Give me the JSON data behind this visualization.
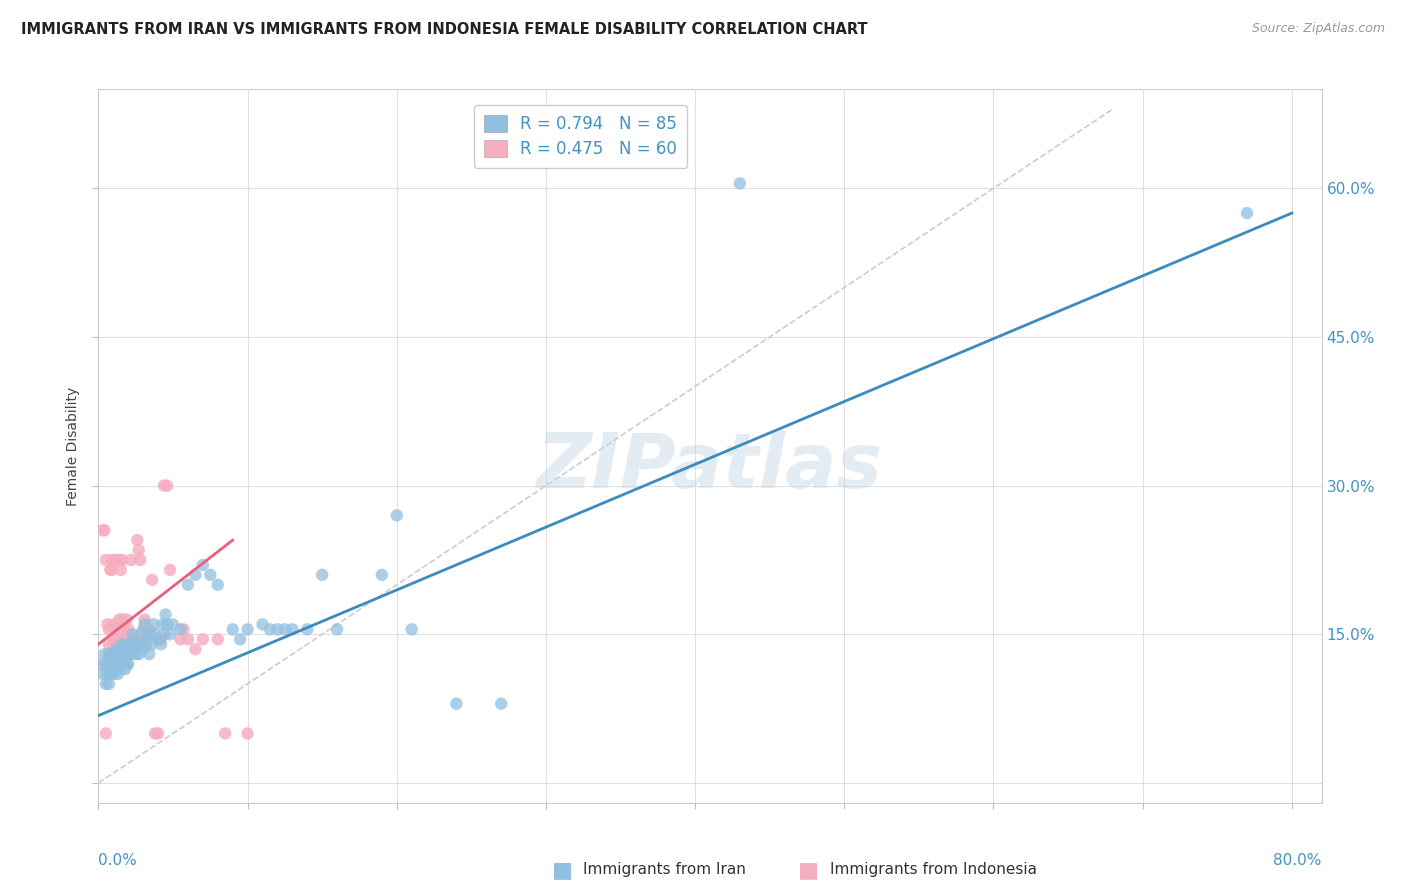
{
  "title": "IMMIGRANTS FROM IRAN VS IMMIGRANTS FROM INDONESIA FEMALE DISABILITY CORRELATION CHART",
  "source": "Source: ZipAtlas.com",
  "ylabel": "Female Disability",
  "legend_iran_R": "0.794",
  "legend_iran_N": "85",
  "legend_indo_R": "0.475",
  "legend_indo_N": "60",
  "iran_scatter": [
    [
      0.002,
      0.12
    ],
    [
      0.003,
      0.11
    ],
    [
      0.004,
      0.13
    ],
    [
      0.005,
      0.12
    ],
    [
      0.005,
      0.1
    ],
    [
      0.006,
      0.11
    ],
    [
      0.007,
      0.13
    ],
    [
      0.007,
      0.1
    ],
    [
      0.008,
      0.12
    ],
    [
      0.008,
      0.11
    ],
    [
      0.009,
      0.13
    ],
    [
      0.009,
      0.12
    ],
    [
      0.01,
      0.12
    ],
    [
      0.01,
      0.11
    ],
    [
      0.011,
      0.13
    ],
    [
      0.011,
      0.12
    ],
    [
      0.012,
      0.115
    ],
    [
      0.012,
      0.135
    ],
    [
      0.013,
      0.12
    ],
    [
      0.013,
      0.11
    ],
    [
      0.014,
      0.13
    ],
    [
      0.014,
      0.12
    ],
    [
      0.015,
      0.115
    ],
    [
      0.015,
      0.135
    ],
    [
      0.016,
      0.12
    ],
    [
      0.016,
      0.14
    ],
    [
      0.017,
      0.13
    ],
    [
      0.017,
      0.12
    ],
    [
      0.018,
      0.135
    ],
    [
      0.018,
      0.115
    ],
    [
      0.019,
      0.12
    ],
    [
      0.019,
      0.14
    ],
    [
      0.02,
      0.13
    ],
    [
      0.02,
      0.12
    ],
    [
      0.021,
      0.135
    ],
    [
      0.022,
      0.14
    ],
    [
      0.022,
      0.13
    ],
    [
      0.023,
      0.15
    ],
    [
      0.024,
      0.14
    ],
    [
      0.025,
      0.13
    ],
    [
      0.026,
      0.14
    ],
    [
      0.027,
      0.13
    ],
    [
      0.028,
      0.15
    ],
    [
      0.029,
      0.14
    ],
    [
      0.03,
      0.135
    ],
    [
      0.031,
      0.16
    ],
    [
      0.032,
      0.14
    ],
    [
      0.033,
      0.15
    ],
    [
      0.034,
      0.13
    ],
    [
      0.035,
      0.15
    ],
    [
      0.036,
      0.14
    ],
    [
      0.037,
      0.16
    ],
    [
      0.038,
      0.15
    ],
    [
      0.04,
      0.145
    ],
    [
      0.042,
      0.14
    ],
    [
      0.043,
      0.16
    ],
    [
      0.044,
      0.15
    ],
    [
      0.045,
      0.17
    ],
    [
      0.046,
      0.16
    ],
    [
      0.048,
      0.15
    ],
    [
      0.05,
      0.16
    ],
    [
      0.055,
      0.155
    ],
    [
      0.06,
      0.2
    ],
    [
      0.065,
      0.21
    ],
    [
      0.07,
      0.22
    ],
    [
      0.075,
      0.21
    ],
    [
      0.08,
      0.2
    ],
    [
      0.09,
      0.155
    ],
    [
      0.095,
      0.145
    ],
    [
      0.1,
      0.155
    ],
    [
      0.11,
      0.16
    ],
    [
      0.115,
      0.155
    ],
    [
      0.12,
      0.155
    ],
    [
      0.125,
      0.155
    ],
    [
      0.13,
      0.155
    ],
    [
      0.14,
      0.155
    ],
    [
      0.15,
      0.21
    ],
    [
      0.16,
      0.155
    ],
    [
      0.19,
      0.21
    ],
    [
      0.2,
      0.27
    ],
    [
      0.21,
      0.155
    ],
    [
      0.24,
      0.08
    ],
    [
      0.27,
      0.08
    ],
    [
      0.43,
      0.605
    ],
    [
      0.77,
      0.575
    ]
  ],
  "indonesia_scatter": [
    [
      0.003,
      0.255
    ],
    [
      0.004,
      0.255
    ],
    [
      0.005,
      0.225
    ],
    [
      0.005,
      0.05
    ],
    [
      0.006,
      0.16
    ],
    [
      0.007,
      0.14
    ],
    [
      0.007,
      0.155
    ],
    [
      0.008,
      0.215
    ],
    [
      0.008,
      0.13
    ],
    [
      0.009,
      0.225
    ],
    [
      0.009,
      0.215
    ],
    [
      0.01,
      0.14
    ],
    [
      0.01,
      0.16
    ],
    [
      0.011,
      0.145
    ],
    [
      0.011,
      0.155
    ],
    [
      0.012,
      0.225
    ],
    [
      0.012,
      0.135
    ],
    [
      0.013,
      0.145
    ],
    [
      0.013,
      0.135
    ],
    [
      0.014,
      0.165
    ],
    [
      0.014,
      0.225
    ],
    [
      0.015,
      0.145
    ],
    [
      0.015,
      0.215
    ],
    [
      0.016,
      0.225
    ],
    [
      0.016,
      0.165
    ],
    [
      0.017,
      0.155
    ],
    [
      0.017,
      0.145
    ],
    [
      0.018,
      0.135
    ],
    [
      0.019,
      0.145
    ],
    [
      0.019,
      0.165
    ],
    [
      0.02,
      0.155
    ],
    [
      0.021,
      0.145
    ],
    [
      0.022,
      0.135
    ],
    [
      0.022,
      0.225
    ],
    [
      0.023,
      0.145
    ],
    [
      0.024,
      0.145
    ],
    [
      0.025,
      0.135
    ],
    [
      0.026,
      0.245
    ],
    [
      0.027,
      0.235
    ],
    [
      0.028,
      0.225
    ],
    [
      0.029,
      0.145
    ],
    [
      0.03,
      0.155
    ],
    [
      0.031,
      0.165
    ],
    [
      0.032,
      0.145
    ],
    [
      0.034,
      0.155
    ],
    [
      0.036,
      0.205
    ],
    [
      0.038,
      0.05
    ],
    [
      0.04,
      0.05
    ],
    [
      0.042,
      0.145
    ],
    [
      0.044,
      0.3
    ],
    [
      0.046,
      0.3
    ],
    [
      0.048,
      0.215
    ],
    [
      0.055,
      0.145
    ],
    [
      0.057,
      0.155
    ],
    [
      0.06,
      0.145
    ],
    [
      0.065,
      0.135
    ],
    [
      0.07,
      0.145
    ],
    [
      0.08,
      0.145
    ],
    [
      0.085,
      0.05
    ],
    [
      0.1,
      0.05
    ]
  ],
  "iran_line": [
    [
      0.0,
      0.068
    ],
    [
      0.8,
      0.575
    ]
  ],
  "indonesia_line": [
    [
      0.0,
      0.14
    ],
    [
      0.09,
      0.245
    ]
  ],
  "diagonal_line": [
    [
      0.0,
      0.0
    ],
    [
      0.68,
      0.68
    ]
  ],
  "iran_color": "#90bfdf",
  "indonesia_color": "#f5aec0",
  "iran_line_color": "#3a8bbf",
  "indonesia_line_color": "#e8607a",
  "diagonal_color": "#cccccc",
  "background_color": "#ffffff",
  "grid_color": "#e0e0e0",
  "watermark": "ZIPatlas",
  "xlim": [
    0.0,
    0.82
  ],
  "ylim": [
    -0.02,
    0.7
  ],
  "right_ytick_vals": [
    0.6,
    0.45,
    0.3,
    0.15
  ],
  "right_ytick_labels": [
    "60.0%",
    "45.0%",
    "30.0%",
    "15.0%"
  ],
  "ytick_color": "#4393c3",
  "xtick_color": "#4393c3"
}
